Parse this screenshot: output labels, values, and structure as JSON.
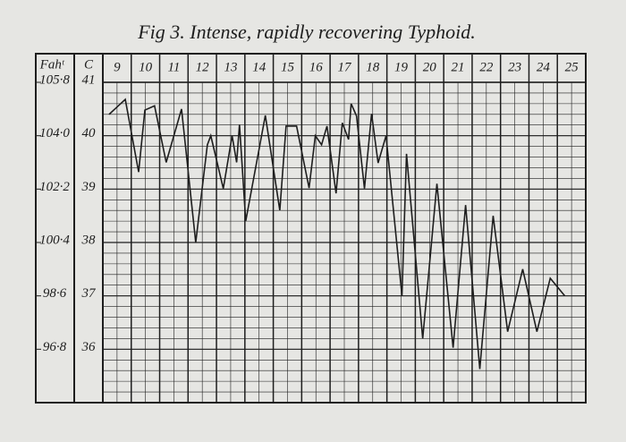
{
  "chart_data": {
    "type": "line",
    "title": "Fig 3.  Intense, rapidly recovering Typhoid.",
    "y_axis_label": "C",
    "y2_axis_label": "Fahᵗ",
    "xlim": [
      9,
      26
    ],
    "xticks": [
      9,
      10,
      11,
      12,
      13,
      14,
      15,
      16,
      17,
      18,
      19,
      20,
      21,
      22,
      23,
      24,
      25
    ],
    "ylim": [
      35,
      41
    ],
    "yticks": [
      41,
      40,
      39,
      38,
      37,
      36
    ],
    "y2lim": [
      95,
      105.8
    ],
    "y2ticks": [
      {
        "value": 105.8,
        "label": "105·8"
      },
      {
        "value": 104.0,
        "label": "104·0"
      },
      {
        "value": 102.2,
        "label": "102·2"
      },
      {
        "value": 100.4,
        "label": "100·4"
      },
      {
        "value": 98.6,
        "label": "98·6"
      },
      {
        "value": 96.8,
        "label": "96·8"
      }
    ],
    "grid": true,
    "color": "#1e1e1e",
    "series": [
      {
        "color": "#1e1e1e",
        "x": [
          9.22,
          9.79,
          10.26,
          10.48,
          10.82,
          11.23,
          11.77,
          12.27,
          12.68,
          12.8,
          13.24,
          13.55,
          13.71,
          13.81,
          14.03,
          14.72,
          15.23,
          15.45,
          15.82,
          16.26,
          16.48,
          16.7,
          16.89,
          17.21,
          17.43,
          17.65,
          17.74,
          17.93,
          18.21,
          18.46,
          18.69,
          18.97,
          19.53,
          19.69,
          20.26,
          20.76,
          21.33,
          21.77,
          22.27,
          22.74,
          23.25,
          23.78,
          24.28,
          24.75,
          25.26
        ],
        "values": [
          40.4,
          40.68,
          39.32,
          40.48,
          40.56,
          39.5,
          40.5,
          38.0,
          39.83,
          40.0,
          39.01,
          40.0,
          39.5,
          40.21,
          38.4,
          40.38,
          38.6,
          40.18,
          40.18,
          39.02,
          40.0,
          39.83,
          40.18,
          38.92,
          40.24,
          39.93,
          40.6,
          40.37,
          39.01,
          40.41,
          39.49,
          40.0,
          37.0,
          39.66,
          36.2,
          39.1,
          36.03,
          38.7,
          35.63,
          38.5,
          36.33,
          37.5,
          36.33,
          37.33,
          37.0
        ]
      }
    ]
  }
}
